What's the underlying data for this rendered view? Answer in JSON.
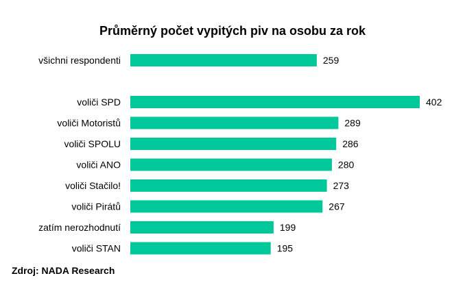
{
  "chart_data": {
    "type": "bar",
    "orientation": "horizontal",
    "title": "Průměrný počet vypitých piv na osobu za rok",
    "categories": [
      "všichni respondenti",
      "voliči SPD",
      "voliči Motoristů",
      "voliči SPOLU",
      "voliči ANO",
      "voliči Stačilo!",
      "voliči Pirátů",
      "zatím nerozhodnutí",
      "voliči STAN"
    ],
    "values": [
      259,
      402,
      289,
      286,
      280,
      273,
      267,
      199,
      195
    ],
    "xlabel": "",
    "ylabel": "",
    "xlim": [
      0,
      402
    ],
    "grid": false,
    "color": "#00c89a"
  },
  "source": "Zdroj: NADA Research"
}
